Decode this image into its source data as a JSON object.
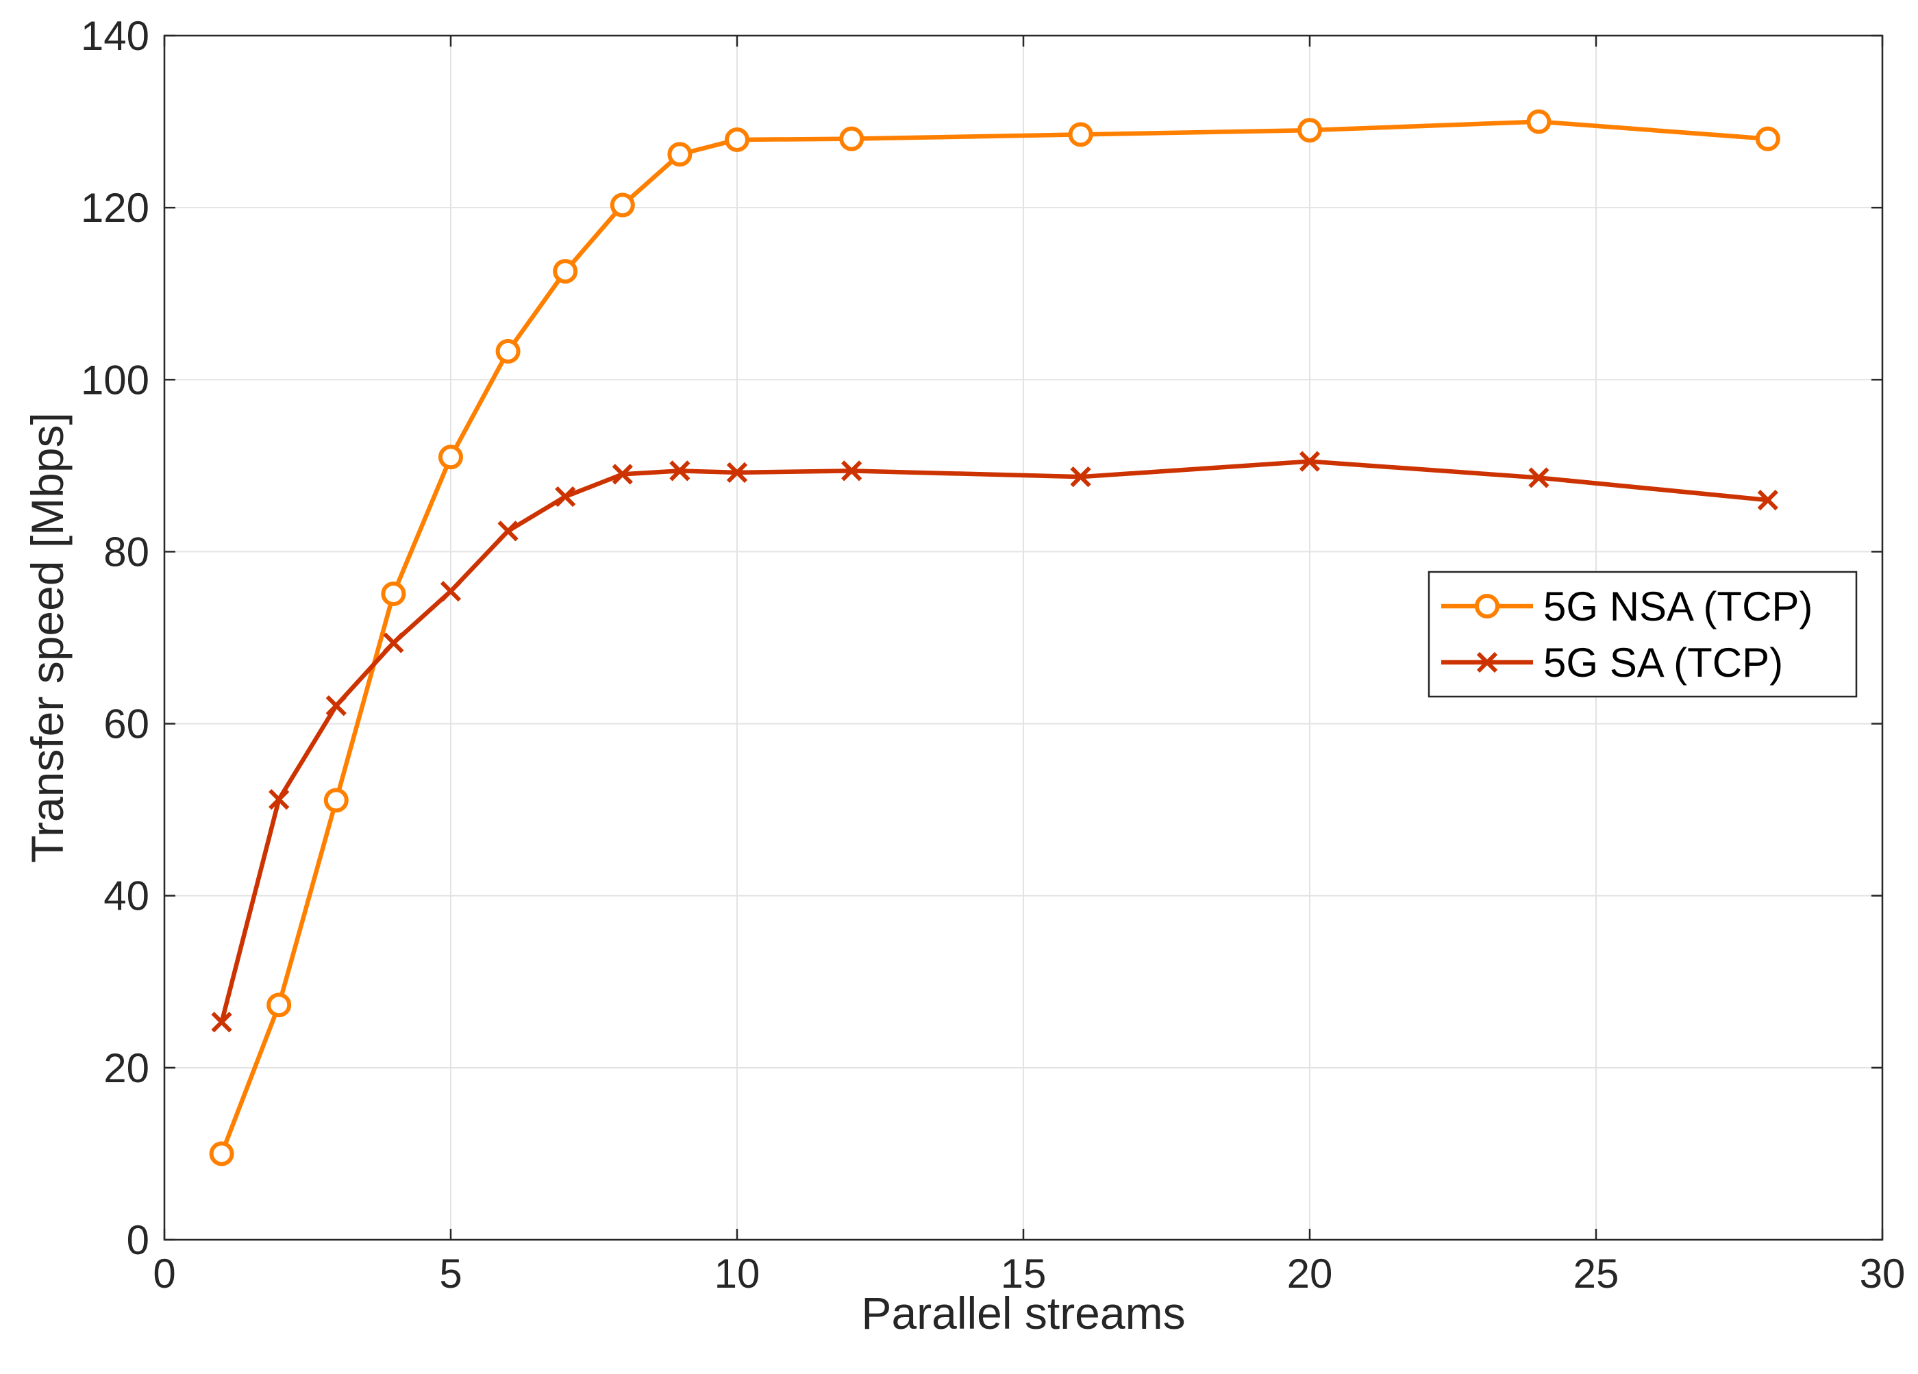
{
  "chart_data": {
    "type": "line",
    "title": "",
    "xlabel": "Parallel streams",
    "ylabel": "Transfer speed [Mbps]",
    "xlim": [
      0,
      30
    ],
    "ylim": [
      0,
      140
    ],
    "xticks": [
      "0",
      "5",
      "10",
      "15",
      "20",
      "25",
      "30"
    ],
    "yticks": [
      "0",
      "20",
      "40",
      "60",
      "80",
      "100",
      "120",
      "140"
    ],
    "grid": true,
    "legend_position": "right",
    "x": [
      1,
      2,
      3,
      4,
      5,
      6,
      7,
      8,
      9,
      10,
      12,
      16,
      20,
      24,
      28
    ],
    "series": [
      {
        "name": "5G NSA (TCP)",
        "marker": "circle",
        "color": "#FF8000",
        "values": [
          10,
          27.3,
          51.1,
          75.1,
          91.0,
          103.3,
          112.6,
          120.3,
          126.2,
          127.9,
          128.0,
          128.5,
          129.0,
          130.0,
          128.0
        ]
      },
      {
        "name": "5G SA (TCP)",
        "marker": "x",
        "color": "#CC3300",
        "values": [
          25.3,
          51.2,
          62.1,
          69.4,
          75.4,
          82.4,
          86.4,
          89.0,
          89.4,
          89.2,
          89.4,
          88.7,
          90.5,
          88.6,
          86.0
        ]
      }
    ]
  }
}
